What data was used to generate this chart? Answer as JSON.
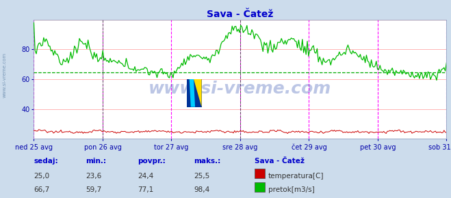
{
  "title": "Sava - Čatež",
  "bg_color": "#ccdcec",
  "plot_bg_color": "#ffffff",
  "title_color": "#0000cc",
  "axis_label_color": "#0000aa",
  "grid_color_h": "#ffaaaa",
  "grid_color_v_minor": "#cccccc",
  "vline_color_major": "#ff00ff",
  "vline_color_black": "#555555",
  "y_min": 20,
  "y_max": 100,
  "avg_line_value": 64.4,
  "avg_line_color": "#00aa00",
  "x_tick_labels": [
    "ned 25 avg",
    "pon 26 avg",
    "tor 27 avg",
    "sre 28 avg",
    "čet 29 avg",
    "pet 30 avg",
    "sob 31 avg"
  ],
  "x_tick_positions": [
    0.0,
    0.1667,
    0.3333,
    0.5,
    0.6667,
    0.8333,
    1.0
  ],
  "watermark": "www.si-vreme.com",
  "watermark_color": "#2244aa",
  "legend_title": "Sava - Čatež",
  "legend_items": [
    {
      "label": "temperatura[C]",
      "color": "#cc0000"
    },
    {
      "label": "pretok[m3/s]",
      "color": "#00aa00"
    }
  ],
  "stats_headers": [
    "sedaj:",
    "min.:",
    "povpr.:",
    "maks.:"
  ],
  "stats_temp": [
    "25,0",
    "23,6",
    "24,4",
    "25,5"
  ],
  "stats_flow": [
    "66,7",
    "59,7",
    "77,1",
    "98,4"
  ],
  "temp_color": "#cc0000",
  "flow_color": "#00bb00",
  "num_points": 336
}
